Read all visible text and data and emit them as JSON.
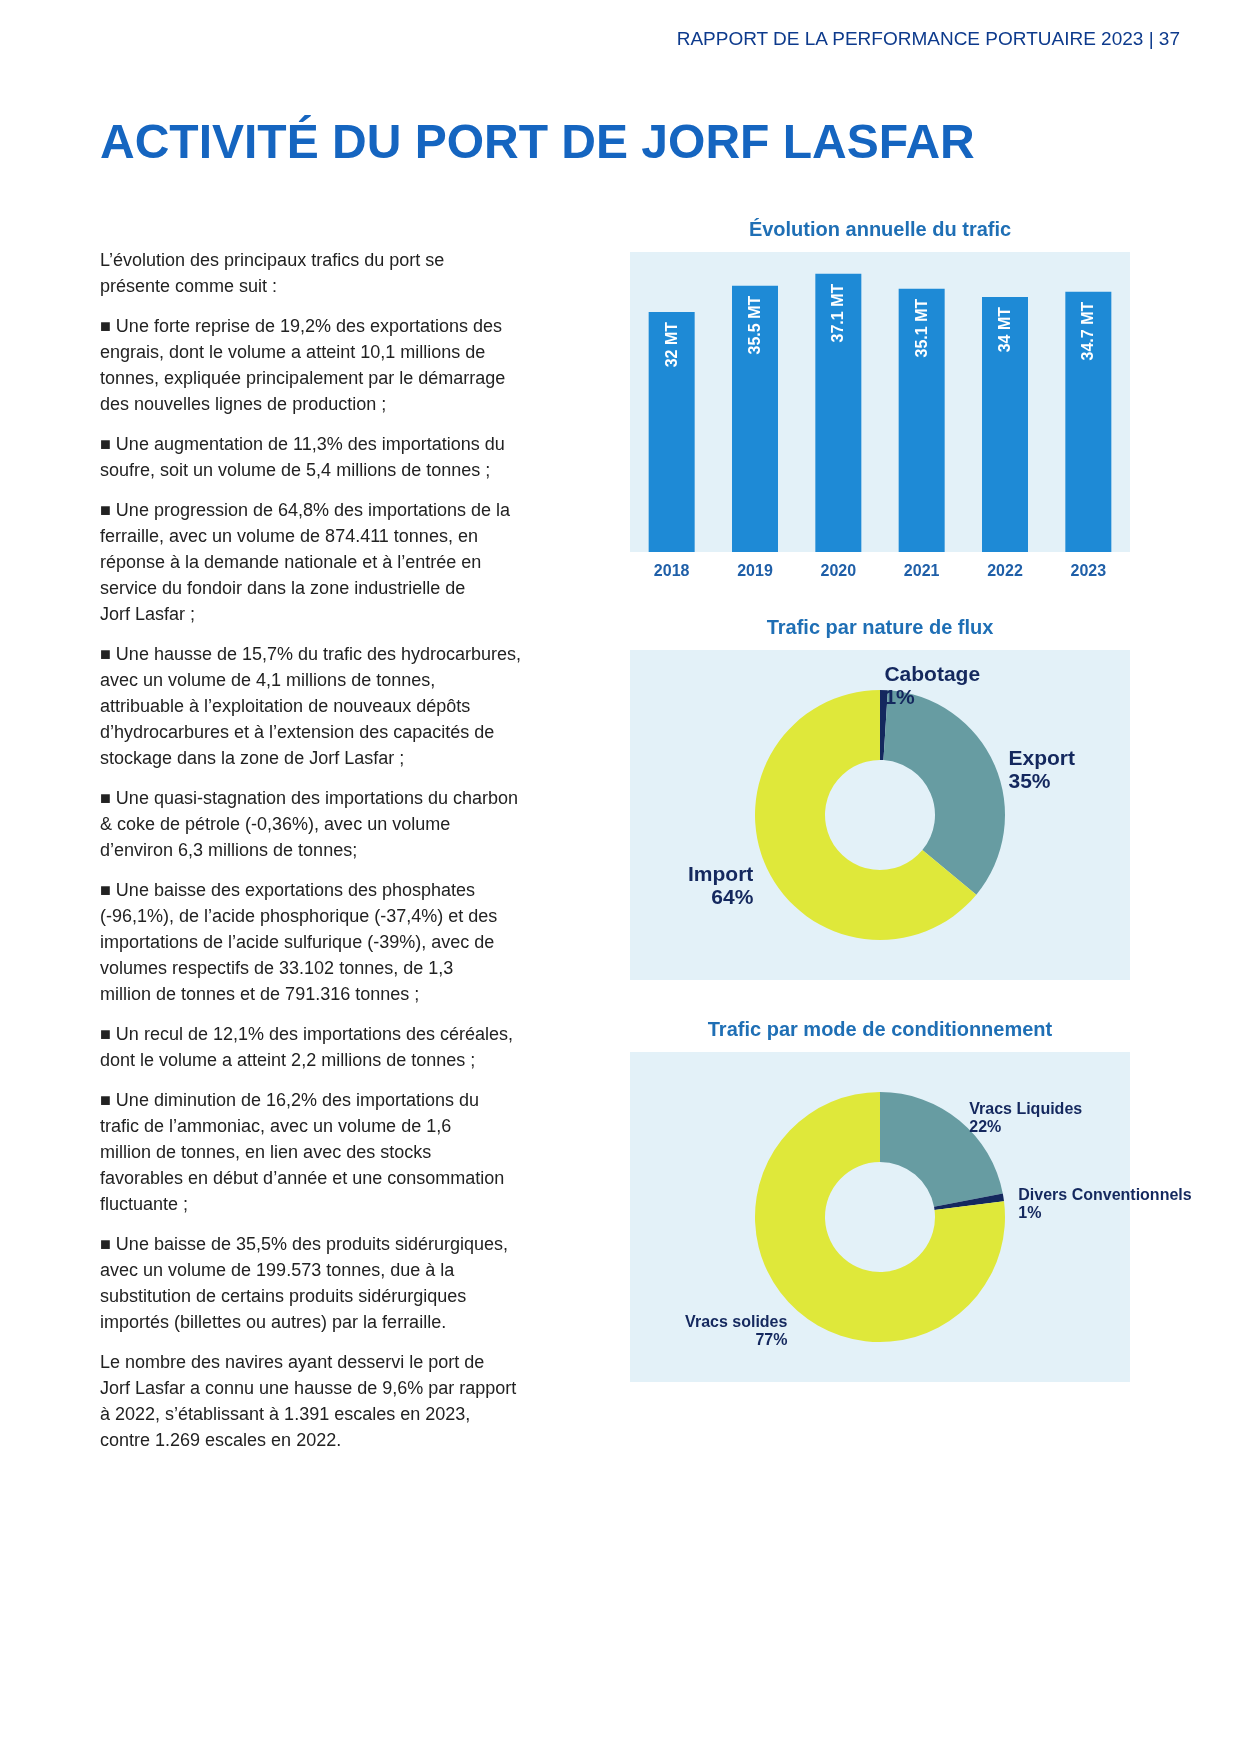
{
  "chart_data": [
    {
      "type": "other",
      "title": "ACTIVITÉ DU PORT DE JORF LASFAR",
      "annotations": [
        "RAPPORT DE LA PERFORMANCE PORTUAIRE 2023 | 37",
        "L’évolution des principaux trafics du port se présente comme suit :",
        "■ Une forte reprise de 19,2% des exportations des engrais, dont le volume a atteint 10,1 millions de tonnes, expliquée principalement par le démarrage des nouvelles lignes de production ;",
        "■ Une augmentation de 11,3% des importations du soufre, soit un volume de 5,4 millions de tonnes ;",
        "■ Une progression de 64,8% des importations de la ferraille, avec un volume de 874.411 tonnes, en réponse à la demande nationale et à l’entrée en service du fondoir dans la zone industrielle de Jorf Lasfar ;",
        "■ Une hausse de 15,7% du trafic des hydrocarbures, avec un volume de 4,1 millions de tonnes, attribuable à l’exploitation de nouveaux dépôts d’hydrocarbures et à l’extension des capacités de stockage dans la zone de Jorf Lasfar ;",
        "■ Une quasi-stagnation des importations du charbon & coke de pétrole (-0,36%), avec un volume d’environ 6,3 millions de tonnes;",
        "■ Une baisse des exportations des phosphates (-96,1%), de l’acide phosphorique (-37,4%) et des importations de l’acide sulfurique (-39%), avec de volumes respectifs de 33.102 tonnes, de 1,3 million de tonnes et de 791.316 tonnes ;",
        "■ Un recul de 12,1% des importations des céréales, dont le volume a atteint 2,2 millions de tonnes ;",
        "■ Une diminution de 16,2% des importations du trafic de l’ammoniac, avec un volume de 1,6 million de tonnes, en lien avec des stocks favorables en début d’année et une consommation fluctuante ;",
        "■ Une baisse de 35,5% des produits sidérurgiques, avec un volume de 199.573 tonnes, due à la substitution de certains produits sidérurgiques importés (billettes ou autres) par la ferraille.",
        "Le nombre des navires ayant desservi le port de Jorf Lasfar a connu une hausse de 9,6% par rapport à 2022, s’établissant à 1.391 escales en 2023, contre 1.269 escales en 2022."
      ]
    },
    {
      "type": "bar",
      "title": "Évolution annuelle du trafic",
      "categories": [
        "2018",
        "2019",
        "2020",
        "2021",
        "2022",
        "2023"
      ],
      "values": [
        32,
        35.5,
        37.1,
        35.1,
        34,
        34.7
      ],
      "value_labels": [
        "32 MT",
        "35.5 MT",
        "37.1 MT",
        "35.1 MT",
        "34 MT",
        "34.7 MT"
      ],
      "color": "#1e8ad6"
    },
    {
      "type": "donut",
      "title": "Trafic par nature de flux",
      "categories": [
        "Cabotage",
        "Export",
        "Import"
      ],
      "values": [
        1,
        35,
        64
      ],
      "value_labels": [
        "1%",
        "35%",
        "64%"
      ],
      "colors": [
        "#14285e",
        "#679ca2",
        "#dfe83a"
      ]
    },
    {
      "type": "donut",
      "title": "Trafic par mode de conditionnement",
      "categories": [
        "Vracs Liquides",
        "Divers Conventionnels",
        "Vracs solides"
      ],
      "values": [
        22,
        1,
        77
      ],
      "value_labels": [
        "22%",
        "1%",
        "77%"
      ],
      "colors": [
        "#679ca2",
        "#14285e",
        "#dfe83a"
      ]
    }
  ]
}
